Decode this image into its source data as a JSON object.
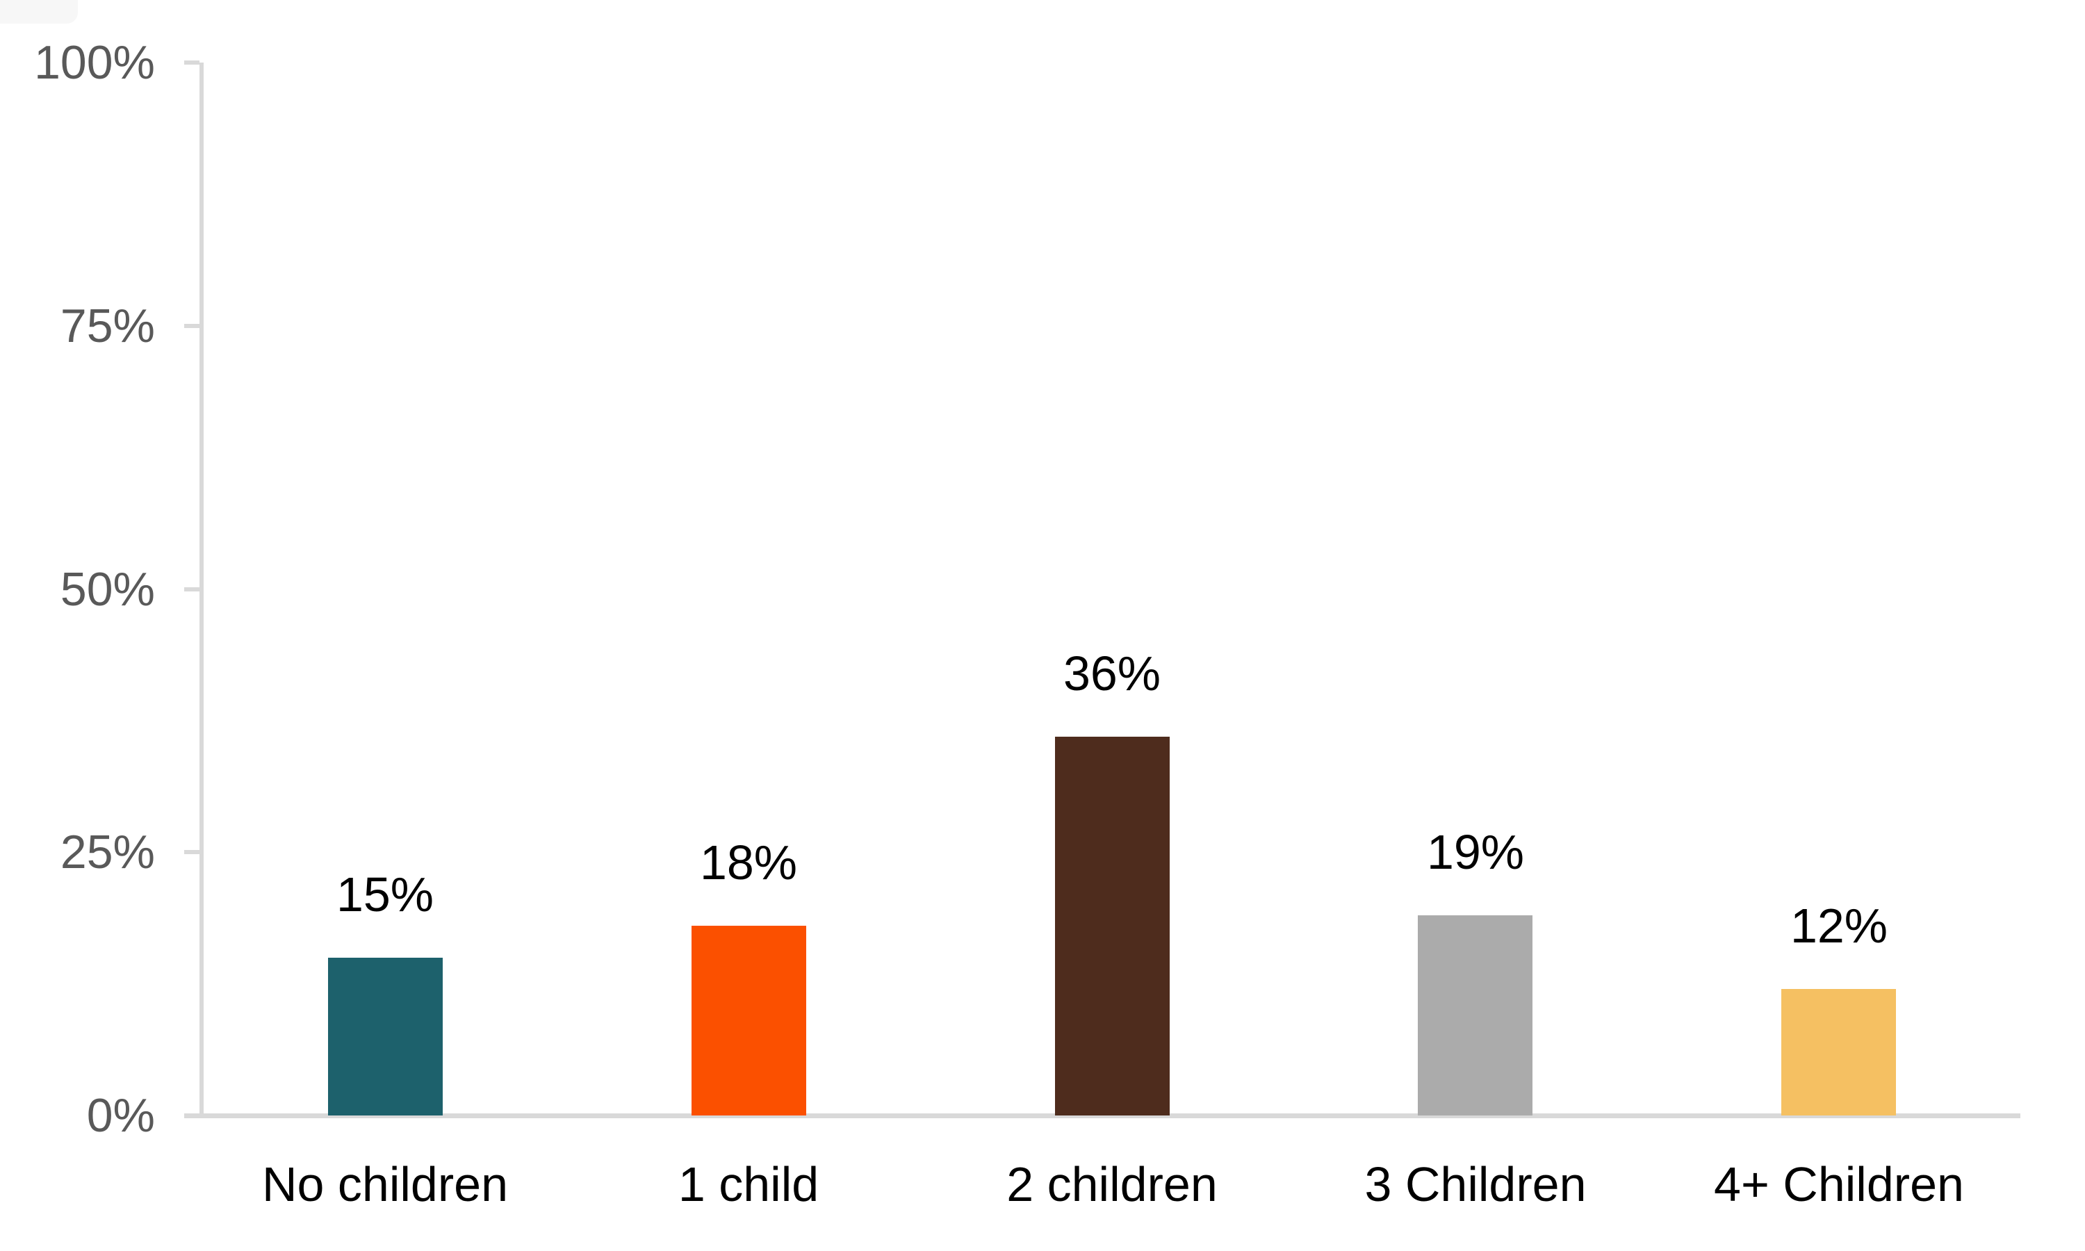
{
  "page": {
    "background": "#FFFFFF"
  },
  "chart_data": {
    "type": "bar",
    "title": "",
    "xlabel": "",
    "ylabel": "",
    "categories": [
      "No children",
      "1 child",
      "2 children",
      "3 Children",
      "4+ Children"
    ],
    "values": [
      15,
      18,
      36,
      19,
      12
    ],
    "data_labels": [
      "15%",
      "18%",
      "36%",
      "19%",
      "12%"
    ],
    "bar_colors": [
      "#1D616C",
      "#FB5000",
      "#4E2C1D",
      "#ABABAB",
      "#F5C062"
    ],
    "ylim": [
      0,
      100
    ],
    "ytick_values": [
      0,
      25,
      50,
      75,
      100
    ],
    "ytick_labels": [
      "0%",
      "25%",
      "50%",
      "75%",
      "100%"
    ],
    "grid": false,
    "legend": "none",
    "axis_color": "#D9D9D9",
    "tick_label_color": "#595959",
    "data_label_color": "#000000",
    "category_label_color": "#000000"
  }
}
